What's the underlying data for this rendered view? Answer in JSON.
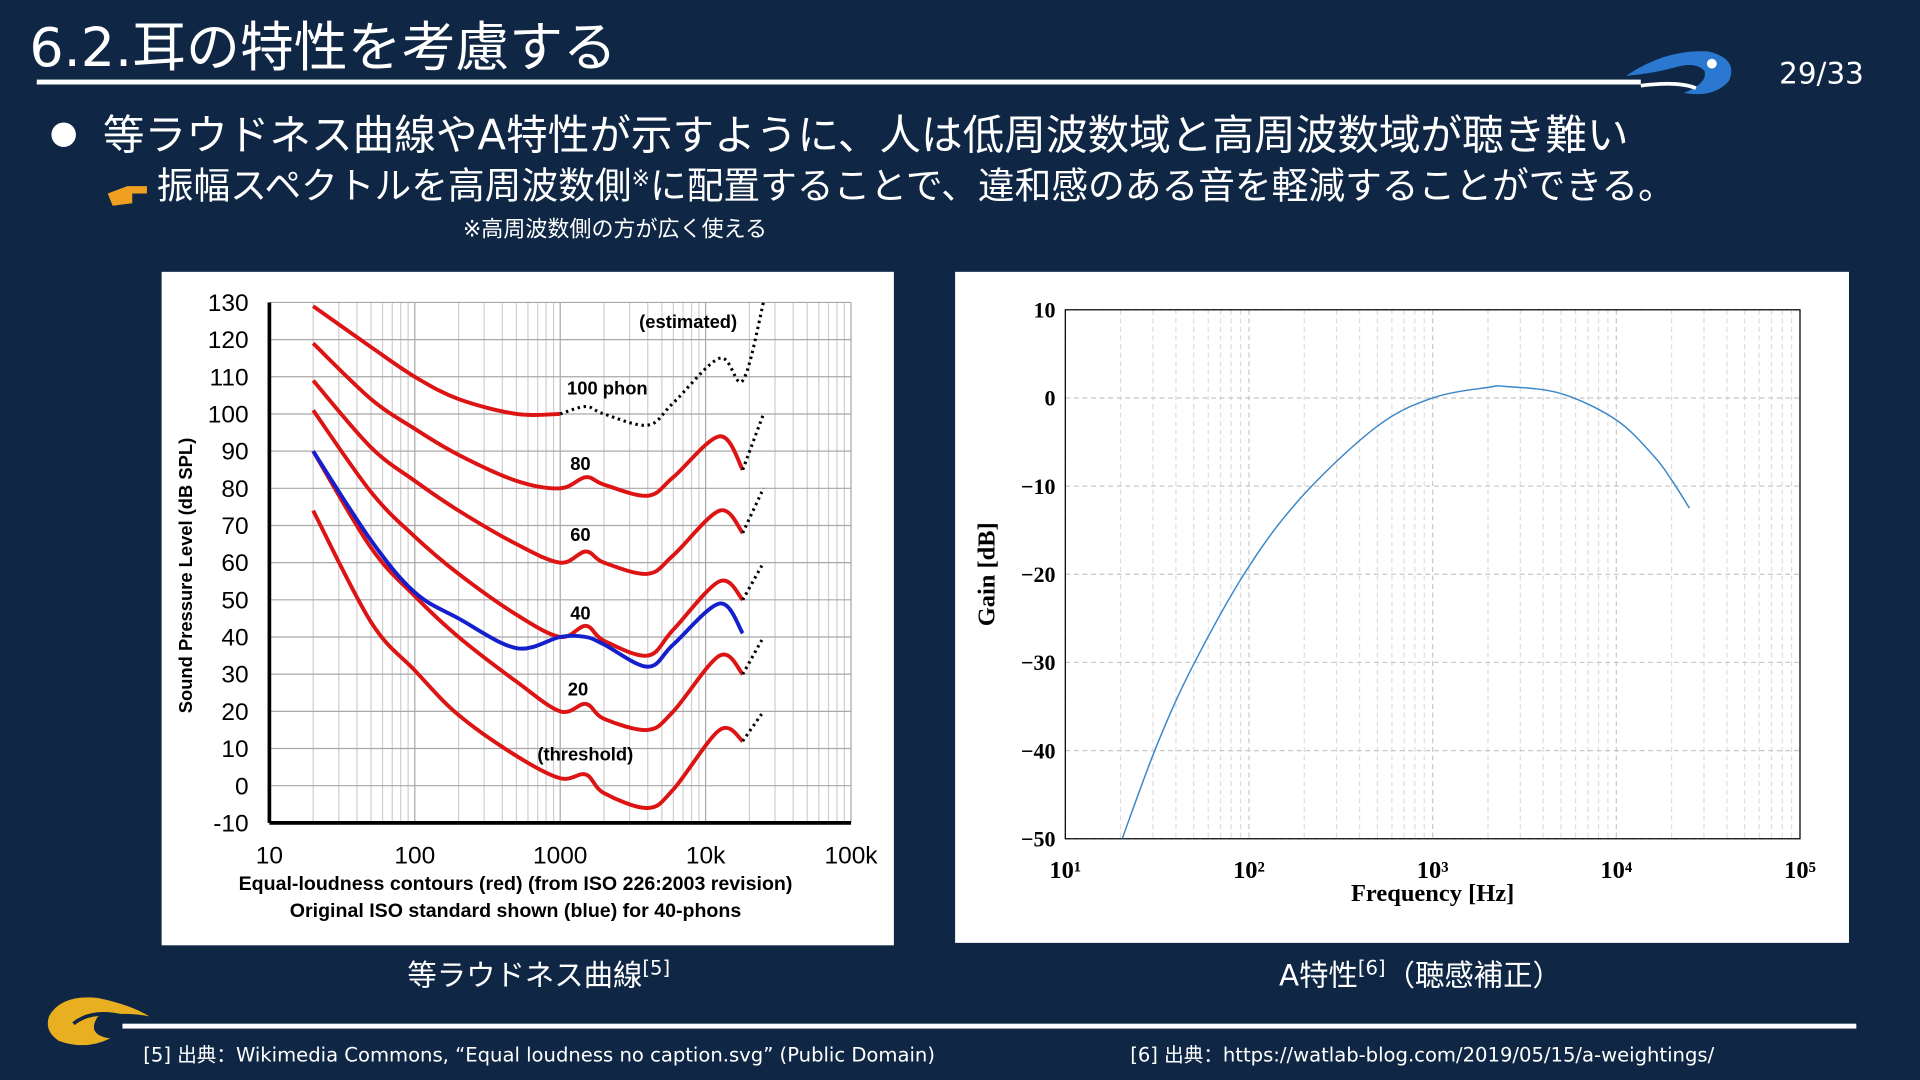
{
  "header": {
    "title": "6.2.耳の特性を考慮する",
    "page": "29/33"
  },
  "bullet": "等ラウドネス曲線やA特性が示すように、人は低周波数域と高周波数域が聴き難い",
  "sub_bullet": {
    "text": "振幅スペクトルを高周波数側",
    "mark": "※",
    "rest": "に配置することで、違和感のある音を軽減することができる。"
  },
  "note": "※高周波数側の方が広く使える",
  "captions": [
    {
      "text": "等ラウドネス曲線",
      "ref": "[5]"
    },
    {
      "text": "A特性",
      "ref": "[6]",
      "suffix": "（聴感補正）"
    }
  ],
  "footer": [
    "[5] 出典：Wikimedia Commons, “Equal loudness no caption.svg” (Public Domain)",
    "[6] 出典：https://watlab-blog.com/2019/05/15/a-weightings/"
  ],
  "chart_data": [
    {
      "type": "line",
      "xlog": true,
      "grid": true,
      "ylabel": "Sound Pressure Level (dB SPL)",
      "xlabel": [
        "Equal-loudness contours (red) (from ISO 226:2003 revision)",
        "Original ISO standard shown (blue) for 40-phons"
      ],
      "annotations": [
        "(estimated)",
        "100 phon",
        "80",
        "60",
        "40",
        "20",
        "(threshold)"
      ],
      "xlim": [
        10,
        100000
      ],
      "xticks": [
        10,
        100,
        1000,
        {
          "value": 10000,
          "label": "10k"
        },
        {
          "value": 100000,
          "label": "100k"
        }
      ],
      "ylim": [
        -10,
        130
      ],
      "yticks": [
        -10,
        0,
        10,
        20,
        30,
        40,
        50,
        60,
        70,
        80,
        90,
        100,
        110,
        120,
        130
      ],
      "x": [
        20,
        50,
        100,
        200,
        500,
        1000,
        1500,
        2000,
        4000,
        6000,
        12500,
        18000
      ],
      "series": [
        {
          "color": "#dd1414",
          "values": [
            129,
            118,
            110,
            104,
            100,
            100,
            null,
            null,
            null,
            null,
            null,
            null
          ]
        },
        {
          "color": "#dd1414",
          "values": [
            119,
            104,
            96,
            89,
            82,
            80,
            83,
            81,
            78,
            83,
            94,
            85
          ]
        },
        {
          "color": "#dd1414",
          "values": [
            109,
            91,
            82,
            74,
            65,
            60,
            63,
            60,
            57,
            62,
            74,
            68
          ]
        },
        {
          "color": "#dd1414",
          "values": [
            101,
            79,
            67,
            57,
            46,
            40,
            43,
            39,
            35,
            42,
            55,
            50
          ]
        },
        {
          "color": "#dd1414",
          "values": [
            90,
            64,
            51,
            40,
            28,
            20,
            22,
            18,
            15,
            20,
            35,
            30
          ]
        },
        {
          "color": "#dd1414",
          "values": [
            74,
            44,
            31,
            19,
            8,
            2,
            3,
            -2,
            -6,
            -1,
            15,
            12
          ]
        },
        {
          "color": "#1420cc",
          "values": [
            90,
            66,
            52,
            45,
            37,
            40,
            40,
            38,
            32,
            38,
            49,
            41
          ]
        },
        {
          "color": "#000000",
          "dash": true,
          "x": [
            1000,
            1500,
            2000,
            4000,
            6000,
            12500,
            18000,
            25000
          ],
          "values": [
            100,
            102,
            100,
            97,
            103,
            115,
            109,
            130
          ]
        },
        {
          "color": "#000000",
          "dash": true,
          "x": [
            18000,
            25000
          ],
          "values": [
            85,
            100
          ]
        },
        {
          "color": "#000000",
          "dash": true,
          "x": [
            18000,
            25000
          ],
          "values": [
            68,
            80
          ]
        },
        {
          "color": "#000000",
          "dash": true,
          "x": [
            18000,
            25000
          ],
          "values": [
            50,
            60
          ]
        },
        {
          "color": "#000000",
          "dash": true,
          "x": [
            18000,
            25000
          ],
          "values": [
            30,
            40
          ]
        },
        {
          "color": "#000000",
          "dash": true,
          "x": [
            18000,
            25000
          ],
          "values": [
            12,
            20
          ]
        }
      ]
    },
    {
      "type": "line",
      "xlog": true,
      "grid": true,
      "ylabel": "Gain [dB]",
      "xlabel": [
        "Frequency [Hz]"
      ],
      "xlim": [
        10,
        100000
      ],
      "xticks": [
        {
          "value": 10,
          "label": "10¹"
        },
        {
          "value": 100,
          "label": "10²"
        },
        {
          "value": 1000,
          "label": "10³"
        },
        {
          "value": 10000,
          "label": "10⁴"
        },
        {
          "value": 100000,
          "label": "10⁵"
        }
      ],
      "ylim": [
        -50,
        10
      ],
      "yticks": [
        {
          "value": -50,
          "label": "−50"
        },
        {
          "value": -40,
          "label": "−40"
        },
        {
          "value": -30,
          "label": "−30"
        },
        {
          "value": -20,
          "label": "−20"
        },
        {
          "value": -10,
          "label": "−10"
        },
        0,
        10
      ],
      "x": [
        20,
        31.5,
        50,
        100,
        200,
        500,
        1000,
        2000,
        2500,
        5000,
        10000,
        16000,
        20000,
        25000
      ],
      "series": [
        {
          "color": "#3a86c8",
          "values": [
            -50.5,
            -39.4,
            -30.2,
            -19.1,
            -10.9,
            -3.2,
            0,
            1.2,
            1.3,
            0.5,
            -2.5,
            -6.6,
            -9.3,
            -12.5
          ]
        }
      ]
    }
  ]
}
